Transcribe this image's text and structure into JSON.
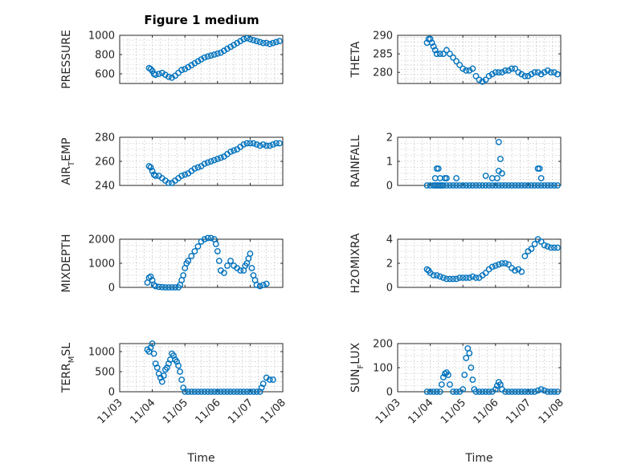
{
  "figure": {
    "title": "Figure 1 medium",
    "marker_color": "#0072BD",
    "xlabel": "Time"
  },
  "chart_data": [
    {
      "type": "scatter",
      "series_label": "PRESSURE",
      "ylabel": [
        "PRESSURE"
      ],
      "title": "Figure 1 medium",
      "xlabel": "",
      "grid": true,
      "xlim": [
        0,
        5
      ],
      "x_ticks": [
        0,
        1,
        2,
        3,
        4,
        5
      ],
      "x_ticklabels": [],
      "ylim": [
        500,
        1000
      ],
      "y_ticks": [
        600,
        800,
        1000
      ],
      "y_ticklabels": [
        "600",
        "800",
        "1000"
      ],
      "x": [
        0.9,
        0.95,
        1.0,
        1.05,
        1.1,
        1.2,
        1.3,
        1.4,
        1.5,
        1.6,
        1.7,
        1.8,
        1.9,
        2.0,
        2.1,
        2.2,
        2.3,
        2.4,
        2.5,
        2.6,
        2.7,
        2.8,
        2.9,
        3.0,
        3.1,
        3.2,
        3.3,
        3.4,
        3.5,
        3.6,
        3.7,
        3.8,
        3.9,
        4.0,
        4.1,
        4.2,
        4.3,
        4.4,
        4.5,
        4.6,
        4.7,
        4.8,
        4.9
      ],
      "y": [
        660,
        650,
        630,
        600,
        590,
        600,
        610,
        590,
        570,
        560,
        580,
        610,
        640,
        650,
        670,
        690,
        710,
        730,
        750,
        770,
        780,
        790,
        800,
        810,
        820,
        840,
        860,
        880,
        900,
        920,
        940,
        960,
        970,
        960,
        950,
        940,
        930,
        920,
        920,
        910,
        920,
        930,
        940
      ]
    },
    {
      "type": "scatter",
      "series_label": "THETA",
      "ylabel": [
        "THETA"
      ],
      "xlabel": "",
      "grid": true,
      "xlim": [
        0,
        5
      ],
      "x_ticks": [
        0,
        1,
        2,
        3,
        4,
        5
      ],
      "x_ticklabels": [],
      "ylim": [
        277,
        290
      ],
      "y_ticks": [
        280,
        285,
        290
      ],
      "y_ticklabels": [
        "280",
        "285",
        "290"
      ],
      "x": [
        0.9,
        0.95,
        1.0,
        1.05,
        1.1,
        1.15,
        1.2,
        1.3,
        1.4,
        1.5,
        1.6,
        1.7,
        1.8,
        1.9,
        2.0,
        2.1,
        2.2,
        2.3,
        2.4,
        2.5,
        2.6,
        2.7,
        2.8,
        2.9,
        3.0,
        3.1,
        3.2,
        3.3,
        3.4,
        3.5,
        3.6,
        3.7,
        3.8,
        3.9,
        4.0,
        4.1,
        4.2,
        4.3,
        4.4,
        4.5,
        4.6,
        4.7,
        4.8,
        4.9
      ],
      "y": [
        288,
        289,
        289,
        288,
        287,
        286,
        285,
        285,
        285,
        286,
        285,
        284,
        283,
        282,
        281,
        280.5,
        280.5,
        281,
        279,
        278,
        277.5,
        278,
        279,
        279.5,
        280,
        280,
        280,
        280.5,
        280.5,
        281,
        281,
        280,
        279.5,
        279,
        279,
        279.5,
        280,
        280,
        279.5,
        280,
        280.5,
        280,
        280,
        279.5
      ]
    },
    {
      "type": "scatter",
      "series_label": "AIR_TEMP",
      "ylabel": [
        "AIR",
        "T",
        "EMP"
      ],
      "xlabel": "",
      "grid": true,
      "xlim": [
        0,
        5
      ],
      "x_ticks": [
        0,
        1,
        2,
        3,
        4,
        5
      ],
      "x_ticklabels": [],
      "ylim": [
        240,
        280
      ],
      "y_ticks": [
        240,
        260,
        280
      ],
      "y_ticklabels": [
        "240",
        "260",
        "280"
      ],
      "x": [
        0.9,
        0.95,
        1.0,
        1.05,
        1.1,
        1.2,
        1.3,
        1.4,
        1.5,
        1.6,
        1.7,
        1.8,
        1.9,
        2.0,
        2.1,
        2.2,
        2.3,
        2.4,
        2.5,
        2.6,
        2.7,
        2.8,
        2.9,
        3.0,
        3.1,
        3.2,
        3.3,
        3.4,
        3.5,
        3.6,
        3.7,
        3.8,
        3.9,
        4.0,
        4.1,
        4.2,
        4.3,
        4.4,
        4.5,
        4.6,
        4.7,
        4.8,
        4.9
      ],
      "y": [
        256,
        255,
        252,
        249,
        248,
        248,
        246,
        244,
        242,
        242,
        244,
        246,
        248,
        249,
        250,
        252,
        254,
        255,
        256,
        258,
        259,
        260,
        261,
        262,
        263,
        264,
        266,
        268,
        269,
        270,
        272,
        274,
        275,
        275,
        275,
        274,
        273,
        274,
        273,
        273,
        274,
        275,
        275
      ]
    },
    {
      "type": "scatter",
      "series_label": "RAINFALL",
      "ylabel": [
        "RAINFALL"
      ],
      "xlabel": "",
      "grid": true,
      "xlim": [
        0,
        5
      ],
      "x_ticks": [
        0,
        1,
        2,
        3,
        4,
        5
      ],
      "x_ticklabels": [],
      "ylim": [
        0,
        2
      ],
      "y_ticks": [
        0,
        1,
        2
      ],
      "y_ticklabels": [
        "0",
        "1",
        "2"
      ],
      "x": [
        0.9,
        1.0,
        1.1,
        1.15,
        1.2,
        1.25,
        1.3,
        1.35,
        1.4,
        1.5,
        1.6,
        1.7,
        1.8,
        1.9,
        2.0,
        2.1,
        2.2,
        2.3,
        2.4,
        2.5,
        2.6,
        2.7,
        2.8,
        2.9,
        3.0,
        3.1,
        3.2,
        3.3,
        3.4,
        3.5,
        3.6,
        3.7,
        3.8,
        3.9,
        4.0,
        4.1,
        4.2,
        4.3,
        4.4,
        4.5,
        4.6,
        4.7,
        4.8,
        4.9,
        1.2,
        1.25,
        1.45,
        1.5,
        1.15,
        1.3,
        1.8,
        2.7,
        2.9,
        3.1,
        3.15,
        3.2,
        3.1,
        3.05,
        4.3,
        4.35,
        4.4
      ],
      "y": [
        0,
        0,
        0,
        0,
        0,
        0,
        0,
        0,
        0,
        0,
        0,
        0,
        0,
        0,
        0,
        0,
        0,
        0,
        0,
        0,
        0,
        0,
        0,
        0,
        0,
        0,
        0,
        0,
        0,
        0,
        0,
        0,
        0,
        0,
        0,
        0,
        0,
        0,
        0,
        0,
        0,
        0,
        0,
        0,
        0.7,
        0.7,
        0.3,
        0.3,
        0.3,
        0.3,
        0.3,
        0.4,
        0.3,
        1.8,
        1.1,
        0.5,
        0.6,
        0.3,
        0.7,
        0.7,
        0.3
      ]
    },
    {
      "type": "scatter",
      "series_label": "MIXDEPTH",
      "ylabel": [
        "MIXDEPTH"
      ],
      "xlabel": "",
      "grid": true,
      "xlim": [
        0,
        5
      ],
      "x_ticks": [
        0,
        1,
        2,
        3,
        4,
        5
      ],
      "x_ticklabels": [],
      "ylim": [
        0,
        2000
      ],
      "y_ticks": [
        0,
        1000,
        2000
      ],
      "y_ticklabels": [
        "0",
        "1000",
        "2000"
      ],
      "x": [
        0.85,
        0.9,
        0.95,
        1.0,
        1.05,
        1.1,
        1.2,
        1.3,
        1.4,
        1.5,
        1.6,
        1.7,
        1.8,
        1.85,
        1.9,
        1.95,
        2.0,
        2.05,
        2.1,
        2.2,
        2.3,
        2.4,
        2.5,
        2.6,
        2.7,
        2.8,
        2.9,
        2.95,
        3.0,
        3.05,
        3.1,
        3.2,
        3.3,
        3.4,
        3.5,
        3.6,
        3.7,
        3.8,
        3.85,
        3.9,
        3.95,
        4.0,
        4.05,
        4.1,
        4.15,
        4.2,
        4.3,
        4.4,
        4.5
      ],
      "y": [
        200,
        400,
        450,
        300,
        100,
        50,
        20,
        10,
        0,
        0,
        0,
        0,
        0,
        100,
        300,
        500,
        800,
        1000,
        1100,
        1300,
        1500,
        1700,
        1900,
        2000,
        2050,
        2050,
        2000,
        1800,
        1500,
        1100,
        700,
        600,
        900,
        1100,
        900,
        800,
        700,
        700,
        900,
        1000,
        1200,
        1400,
        800,
        500,
        300,
        100,
        50,
        100,
        150
      ]
    },
    {
      "type": "scatter",
      "series_label": "H2OMIXRA",
      "ylabel": [
        "H2OMIXRA"
      ],
      "xlabel": "",
      "grid": true,
      "xlim": [
        0,
        5
      ],
      "x_ticks": [
        0,
        1,
        2,
        3,
        4,
        5
      ],
      "x_ticklabels": [],
      "ylim": [
        0,
        4
      ],
      "y_ticks": [
        0,
        2,
        4
      ],
      "y_ticklabels": [
        "0",
        "2",
        "4"
      ],
      "x": [
        0.9,
        0.95,
        1.0,
        1.1,
        1.2,
        1.3,
        1.4,
        1.5,
        1.6,
        1.7,
        1.8,
        1.9,
        2.0,
        2.1,
        2.2,
        2.3,
        2.4,
        2.5,
        2.6,
        2.7,
        2.8,
        2.9,
        3.0,
        3.1,
        3.2,
        3.3,
        3.4,
        3.5,
        3.6,
        3.7,
        3.8,
        3.9,
        4.0,
        4.1,
        4.2,
        4.3,
        4.4,
        4.5,
        4.6,
        4.7,
        4.8,
        4.9
      ],
      "y": [
        1.5,
        1.4,
        1.2,
        1.0,
        1.0,
        0.9,
        0.8,
        0.7,
        0.7,
        0.7,
        0.7,
        0.8,
        0.8,
        0.8,
        0.8,
        0.9,
        0.8,
        0.8,
        1.0,
        1.2,
        1.5,
        1.7,
        1.8,
        1.9,
        2.0,
        2.0,
        1.9,
        1.6,
        1.4,
        1.5,
        1.3,
        2.6,
        3.0,
        3.2,
        3.6,
        4.0,
        3.8,
        3.5,
        3.4,
        3.3,
        3.3,
        3.3
      ]
    },
    {
      "type": "scatter",
      "series_label": "TERR_MSL",
      "ylabel": [
        "TERR",
        "M",
        "SL"
      ],
      "xlabel": "Time",
      "grid": true,
      "xlim": [
        0,
        5
      ],
      "x_ticks": [
        0,
        1,
        2,
        3,
        4,
        5
      ],
      "x_ticklabels": [
        "11/03",
        "11/04",
        "11/05",
        "11/06",
        "11/07",
        "11/08"
      ],
      "ylim": [
        0,
        1200
      ],
      "y_ticks": [
        0,
        500,
        1000
      ],
      "y_ticklabels": [
        "0",
        "500",
        "1000"
      ],
      "x": [
        0.85,
        0.9,
        0.95,
        1.0,
        1.05,
        1.1,
        1.15,
        1.2,
        1.25,
        1.3,
        1.35,
        1.4,
        1.45,
        1.5,
        1.55,
        1.6,
        1.65,
        1.7,
        1.75,
        1.8,
        1.85,
        1.9,
        1.95,
        2.0,
        2.1,
        2.2,
        2.3,
        2.4,
        2.5,
        2.6,
        2.7,
        2.8,
        2.9,
        3.0,
        3.1,
        3.2,
        3.3,
        3.4,
        3.5,
        3.6,
        3.7,
        3.8,
        3.9,
        4.0,
        4.1,
        4.2,
        4.3,
        4.35,
        4.4,
        4.5,
        4.6,
        4.7
      ],
      "y": [
        1050,
        1000,
        1100,
        1200,
        950,
        700,
        600,
        450,
        350,
        250,
        400,
        550,
        600,
        700,
        800,
        950,
        900,
        800,
        750,
        650,
        500,
        300,
        100,
        0,
        0,
        0,
        0,
        0,
        0,
        0,
        0,
        0,
        0,
        0,
        0,
        0,
        0,
        0,
        0,
        0,
        0,
        0,
        0,
        0,
        0,
        0,
        0,
        100,
        200,
        350,
        300,
        300
      ]
    },
    {
      "type": "scatter",
      "series_label": "SUN_FLUX",
      "ylabel": [
        "SUN",
        "F",
        "LUX"
      ],
      "xlabel": "Time",
      "grid": true,
      "xlim": [
        0,
        5
      ],
      "x_ticks": [
        0,
        1,
        2,
        3,
        4,
        5
      ],
      "x_ticklabels": [
        "11/03",
        "11/04",
        "11/05",
        "11/06",
        "11/07",
        "11/08"
      ],
      "ylim": [
        0,
        200
      ],
      "y_ticks": [
        0,
        100,
        200
      ],
      "y_ticklabels": [
        "0",
        "100",
        "200"
      ],
      "x": [
        0.9,
        1.0,
        1.1,
        1.2,
        1.3,
        1.35,
        1.4,
        1.45,
        1.5,
        1.55,
        1.6,
        1.7,
        1.8,
        1.9,
        2.0,
        2.05,
        2.1,
        2.15,
        2.2,
        2.25,
        2.3,
        2.35,
        2.4,
        2.5,
        2.6,
        2.7,
        2.8,
        2.9,
        3.0,
        3.05,
        3.1,
        3.15,
        3.2,
        3.3,
        3.4,
        3.5,
        3.6,
        3.7,
        3.8,
        3.9,
        4.0,
        4.1,
        4.2,
        4.3,
        4.4,
        4.5,
        4.6,
        4.7,
        4.8,
        4.9
      ],
      "y": [
        0,
        0,
        0,
        0,
        0,
        30,
        60,
        75,
        80,
        70,
        30,
        0,
        0,
        0,
        10,
        70,
        140,
        180,
        160,
        100,
        50,
        10,
        0,
        0,
        0,
        0,
        0,
        0,
        10,
        25,
        40,
        30,
        10,
        0,
        0,
        0,
        0,
        0,
        0,
        0,
        0,
        0,
        0,
        5,
        10,
        5,
        0,
        0,
        0,
        0
      ]
    }
  ]
}
